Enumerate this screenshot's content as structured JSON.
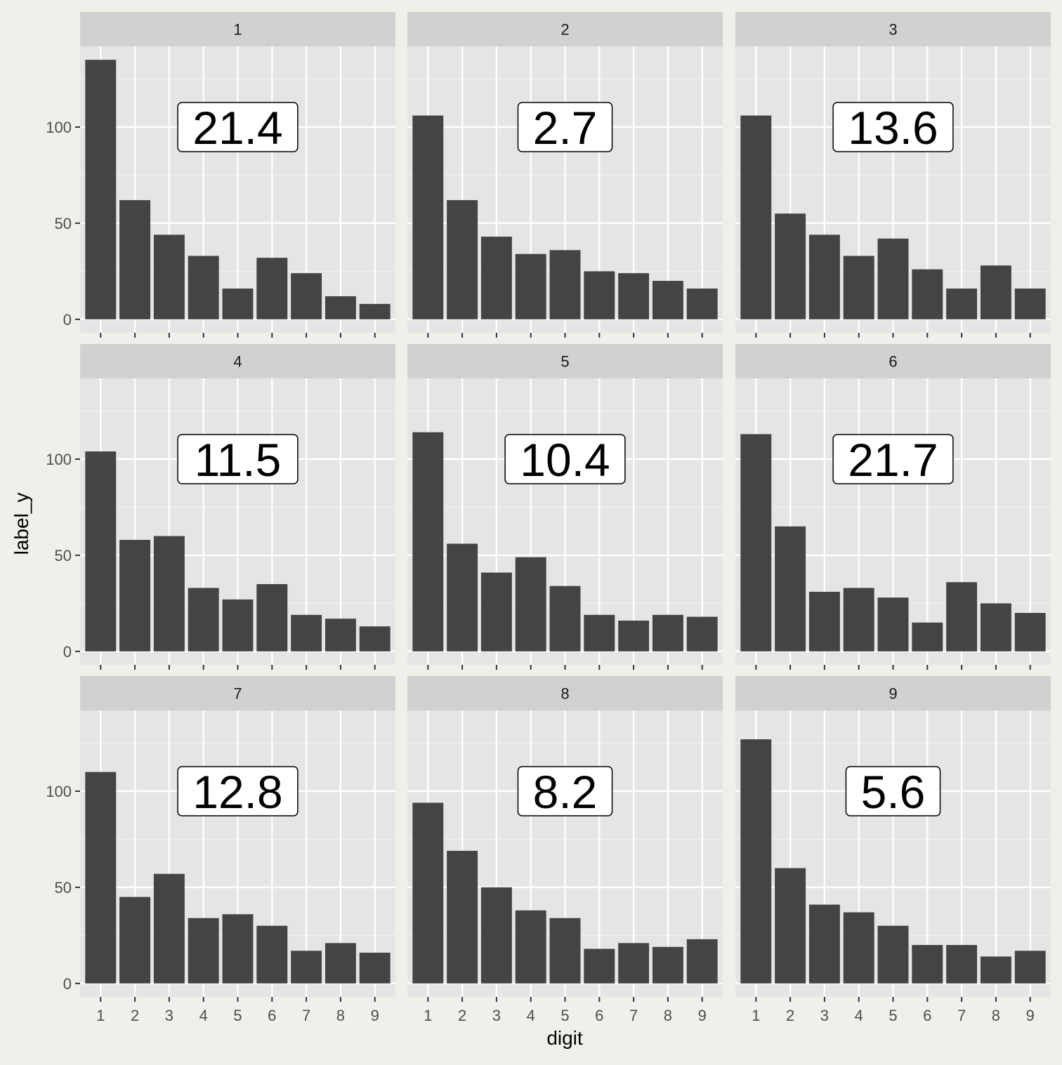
{
  "chart_data": {
    "type": "bar",
    "layout": "faceted 3x3 grid",
    "xlabel": "digit",
    "ylabel": "label_y",
    "categories": [
      "1",
      "2",
      "3",
      "4",
      "5",
      "6",
      "7",
      "8",
      "9"
    ],
    "y_ticks": [
      0,
      50,
      100
    ],
    "ylim": [
      -7,
      142
    ],
    "colors": {
      "bar": "#444444",
      "panel_bg": "#e5e5e5",
      "strip_bg": "#d1d1d1",
      "page_bg": "#f0f0eb",
      "grid": "#ffffff"
    },
    "facets": [
      {
        "strip": "1",
        "annotation": "21.4",
        "values": [
          135,
          62,
          44,
          33,
          16,
          32,
          24,
          12,
          8
        ]
      },
      {
        "strip": "2",
        "annotation": "2.7",
        "values": [
          106,
          62,
          43,
          34,
          36,
          25,
          24,
          20,
          16
        ]
      },
      {
        "strip": "3",
        "annotation": "13.6",
        "values": [
          106,
          55,
          44,
          33,
          42,
          26,
          16,
          28,
          16
        ]
      },
      {
        "strip": "4",
        "annotation": "11.5",
        "values": [
          104,
          58,
          60,
          33,
          27,
          35,
          19,
          17,
          13
        ]
      },
      {
        "strip": "5",
        "annotation": "10.4",
        "values": [
          114,
          56,
          41,
          49,
          34,
          19,
          16,
          19,
          18
        ]
      },
      {
        "strip": "6",
        "annotation": "21.7",
        "values": [
          113,
          65,
          31,
          33,
          28,
          15,
          36,
          25,
          20
        ]
      },
      {
        "strip": "7",
        "annotation": "12.8",
        "values": [
          110,
          45,
          57,
          34,
          36,
          30,
          17,
          21,
          16
        ]
      },
      {
        "strip": "8",
        "annotation": "8.2",
        "values": [
          94,
          69,
          50,
          38,
          34,
          18,
          21,
          19,
          23
        ]
      },
      {
        "strip": "9",
        "annotation": "5.6",
        "values": [
          127,
          60,
          41,
          37,
          30,
          20,
          20,
          14,
          17
        ]
      }
    ]
  }
}
